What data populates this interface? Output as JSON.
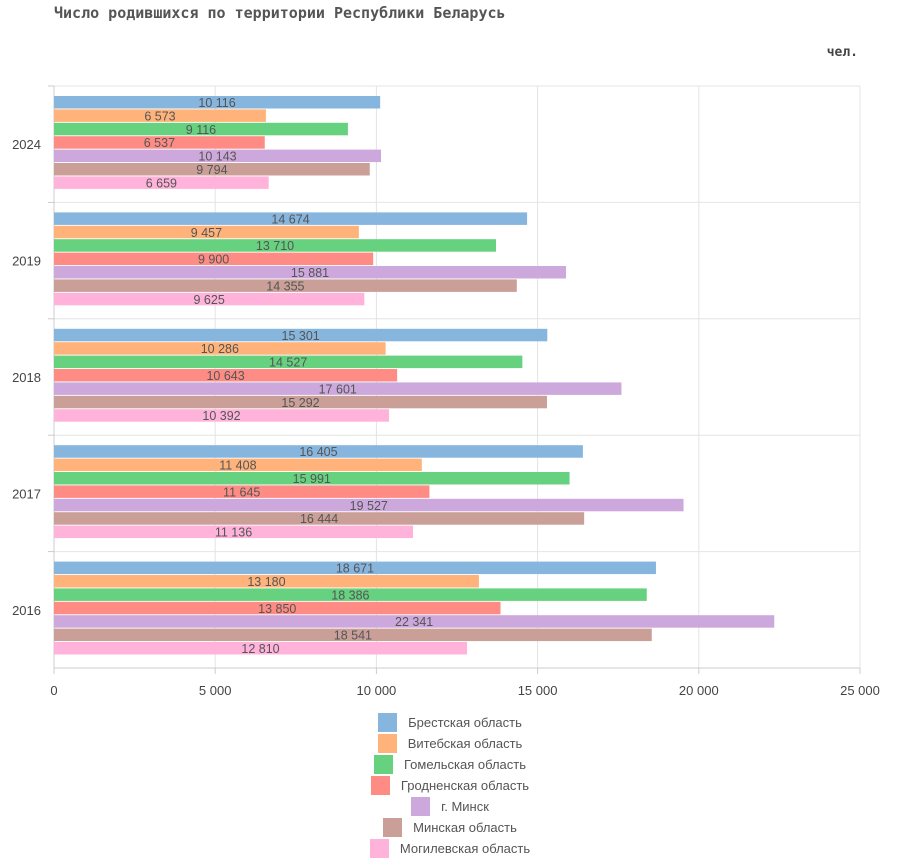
{
  "header": {
    "title": "Число родившихся по территории Республики Беларусь",
    "unit": "чел."
  },
  "chart_data": {
    "type": "bar",
    "orientation": "horizontal",
    "title": "Число родившихся по территории Республики Беларусь",
    "unit": "чел.",
    "categories": [
      "2024",
      "2019",
      "2018",
      "2017",
      "2016"
    ],
    "xlim": [
      0,
      25000
    ],
    "xticks": [
      0,
      5000,
      10000,
      15000,
      20000,
      25000
    ],
    "xtick_labels": [
      "0",
      "5 000",
      "10 000",
      "15 000",
      "20 000",
      "25 000"
    ],
    "grid": true,
    "legend_position": "bottom",
    "series": [
      {
        "name": "Брестская область",
        "color": "#86b5de",
        "values": [
          10116,
          14674,
          15301,
          16405,
          18671
        ],
        "labels": [
          "10 116",
          "14 674",
          "15 301",
          "16 405",
          "18 671"
        ]
      },
      {
        "name": "Витебская область",
        "color": "#ffb37a",
        "values": [
          6573,
          9457,
          10286,
          11408,
          13180
        ],
        "labels": [
          "6 573",
          "9 457",
          "10 286",
          "11 408",
          "13 180"
        ]
      },
      {
        "name": "Гомельская область",
        "color": "#66d17e",
        "values": [
          9116,
          13710,
          14527,
          15991,
          18386
        ],
        "labels": [
          "9 116",
          "13 710",
          "14 527",
          "15 991",
          "18 386"
        ]
      },
      {
        "name": "Гродненская область",
        "color": "#ff8c84",
        "values": [
          6537,
          9900,
          10643,
          11645,
          13850
        ],
        "labels": [
          "6 537",
          "9 900",
          "10 643",
          "11 645",
          "13 850"
        ]
      },
      {
        "name": "г. Минск",
        "color": "#cda8dc",
        "values": [
          10143,
          15881,
          17601,
          19527,
          22341
        ],
        "labels": [
          "10 143",
          "15 881",
          "17 601",
          "19 527",
          "22 341"
        ]
      },
      {
        "name": "Минская область",
        "color": "#c99f97",
        "values": [
          9794,
          14355,
          15292,
          16444,
          18541
        ],
        "labels": [
          "9 794",
          "14 355",
          "15 292",
          "16 444",
          "18 541"
        ]
      },
      {
        "name": "Могилевская область",
        "color": "#ffb3da",
        "values": [
          6659,
          9625,
          10392,
          11136,
          12810
        ],
        "labels": [
          "6 659",
          "9 625",
          "10 392",
          "11 136",
          "12 810"
        ]
      }
    ]
  }
}
